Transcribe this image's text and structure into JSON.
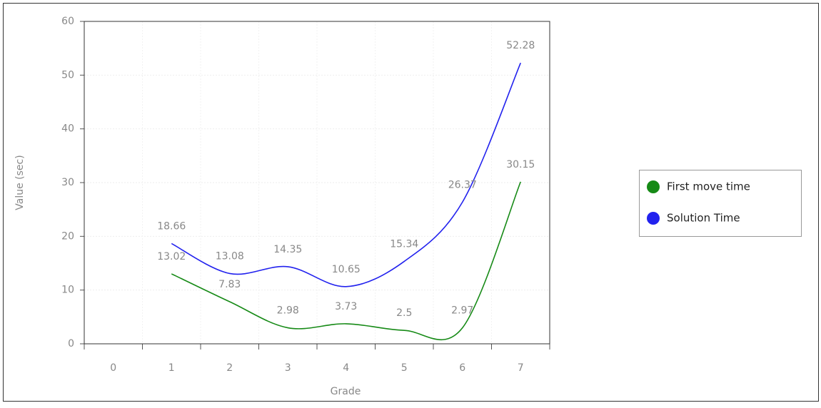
{
  "chart_data": {
    "type": "line",
    "x_label": "Grade",
    "y_label": "Value (sec)",
    "categories": [
      "0",
      "1",
      "2",
      "3",
      "4",
      "5",
      "6",
      "7"
    ],
    "series": [
      {
        "name": "First move time",
        "color": "#168a16",
        "values": [
          null,
          13.02,
          7.83,
          2.98,
          3.73,
          2.5,
          2.97,
          30.15
        ]
      },
      {
        "name": "Solution Time",
        "color": "#2222ee",
        "values": [
          null,
          18.66,
          13.08,
          14.35,
          10.65,
          15.34,
          26.37,
          52.28
        ]
      }
    ],
    "ylim": [
      0,
      60
    ],
    "yticks": [
      0,
      10,
      20,
      30,
      40,
      50,
      60
    ],
    "grid": true,
    "legend": "right"
  }
}
